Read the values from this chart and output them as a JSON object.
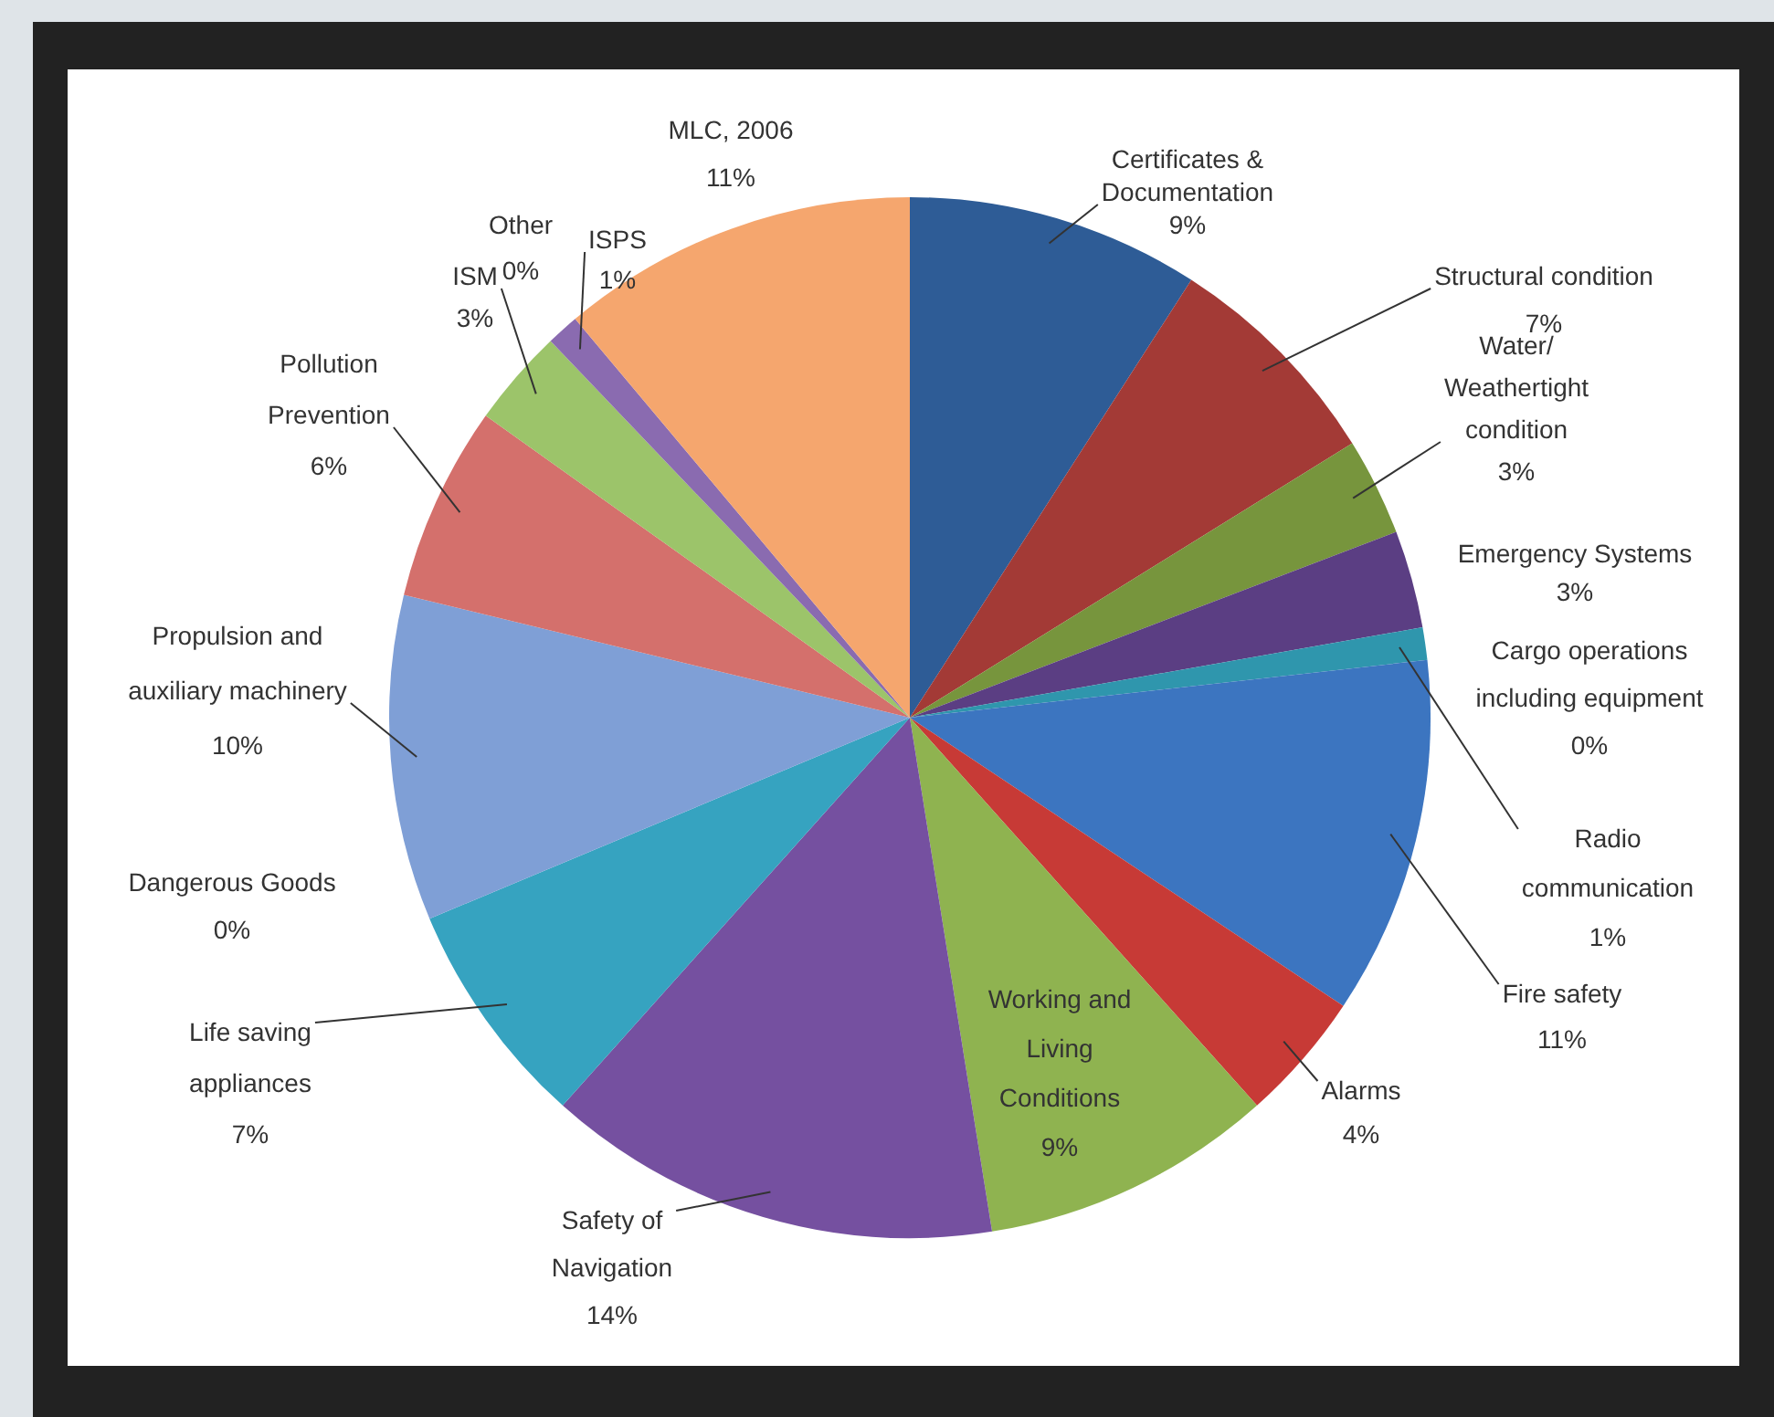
{
  "chart_data": {
    "type": "pie",
    "categories": [
      "Certificates & Documentation",
      "Structural condition",
      "Water/ Weathertight condition",
      "Emergency Systems",
      "Cargo operations including equipment",
      "Radio communication",
      "Fire safety",
      "Alarms",
      "Working and Living Conditions",
      "Safety of Navigation",
      "Life saving appliances",
      "Dangerous Goods",
      "Propulsion and auxiliary machinery",
      "Pollution Prevention",
      "ISM",
      "Other",
      "ISPS",
      "MLC, 2006"
    ],
    "values": [
      9,
      7,
      3,
      3,
      0,
      1,
      11,
      4,
      9,
      14,
      7,
      0,
      10,
      6,
      3,
      0,
      1,
      11
    ],
    "value_labels": [
      "9%",
      "7%",
      "3%",
      "3%",
      "0%",
      "1%",
      "11%",
      "4%",
      "9%",
      "14%",
      "7%",
      "0%",
      "10%",
      "6%",
      "3%",
      "0%",
      "1%",
      "11%"
    ],
    "colors": [
      "#2e5c96",
      "#a33a36",
      "#77953d",
      "#5b3e83",
      "#2d8ea6",
      "#2f96ad",
      "#3c75c0",
      "#c73a36",
      "#8fb350",
      "#7550a0",
      "#36a3c0",
      "#5b87c8",
      "#7f9fd6",
      "#d4706c",
      "#9cc46a",
      "#b2a3cc",
      "#8a6bb0",
      "#f5a66e"
    ],
    "legend": false
  }
}
